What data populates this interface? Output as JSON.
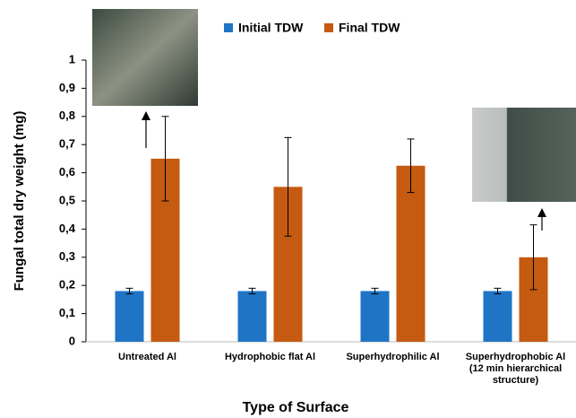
{
  "chart_data": {
    "type": "bar",
    "x_label": "Type of Surface",
    "y_label": "Fungal total dry weight (mg)",
    "categories": [
      "Untreated Al",
      "Hydrophobic flat Al",
      "Superhydrophilic Al",
      "Superhydrophobic Al\n(12 min hierarchical\nstructure)"
    ],
    "series": [
      {
        "name": "Initial TDW",
        "color": "#1f74c6",
        "values": [
          0.18,
          0.18,
          0.18,
          0.18
        ],
        "errors": [
          0.01,
          0.01,
          0.01,
          0.01
        ]
      },
      {
        "name": "Final TDW",
        "color": "#c55a11",
        "values": [
          0.65,
          0.55,
          0.625,
          0.3
        ],
        "errors": [
          0.15,
          0.175,
          0.095,
          0.115
        ]
      }
    ],
    "ylim": [
      0,
      1
    ],
    "yticks": [
      0,
      {
        "value": 0.1,
        "label": "0,1"
      },
      {
        "value": 0.2,
        "label": "0,2"
      },
      {
        "value": 0.3,
        "label": "0,3"
      },
      {
        "value": 0.4,
        "label": "0,4"
      },
      {
        "value": 0.5,
        "label": "0,5"
      },
      {
        "value": 0.6,
        "label": "0,6"
      },
      {
        "value": 0.7,
        "label": "0,7"
      },
      {
        "value": 0.8,
        "label": "0,8"
      },
      {
        "value": 0.9,
        "label": "0,9"
      },
      1
    ],
    "grid": false,
    "legend": "top"
  }
}
